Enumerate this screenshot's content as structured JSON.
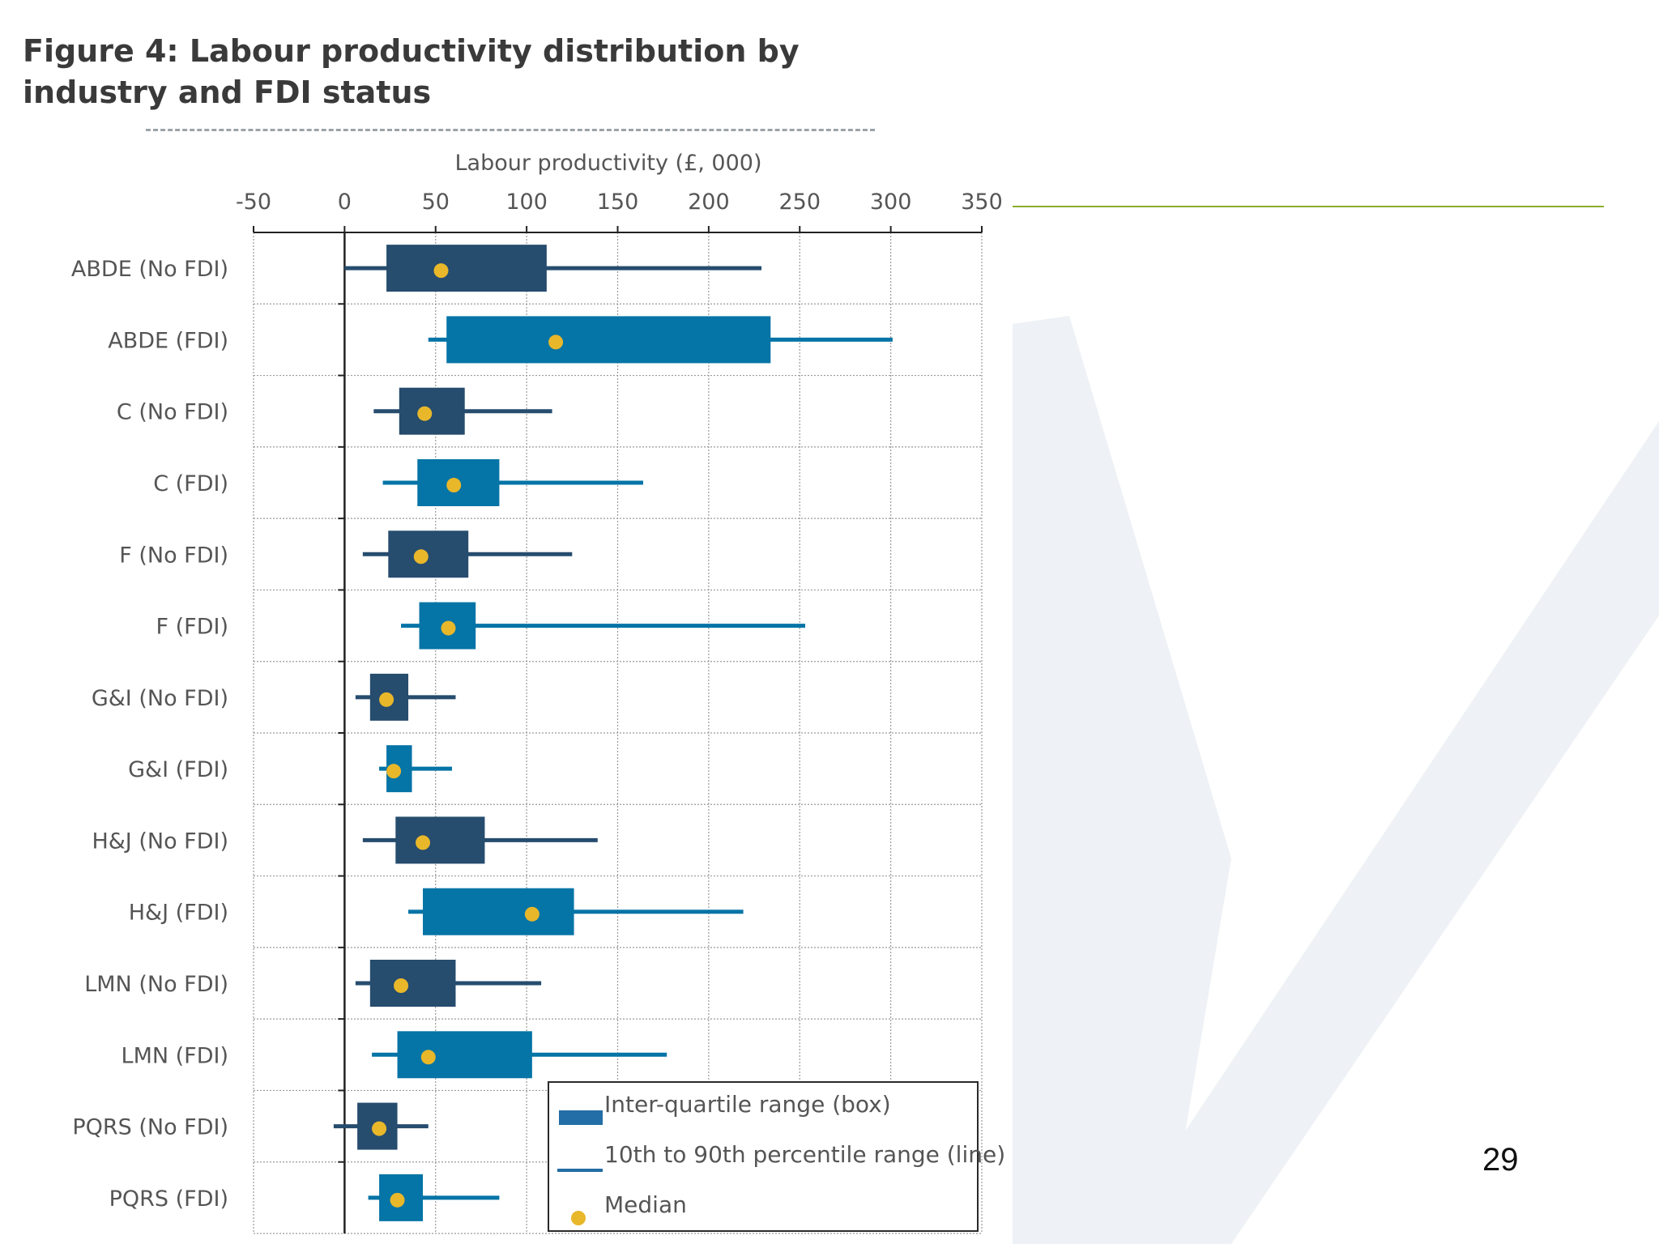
{
  "page": {
    "title": "Figure 4: Labour productivity distribution by industry and FDI status",
    "page_number": "29"
  },
  "colors": {
    "no_fdi": "#264c6e",
    "fdi": "#0574a6",
    "median": "#e8b72a",
    "grid": "#9a9a9a",
    "green_rule": "#8dae2c",
    "watermark": "#eef1f5"
  },
  "chart_data": {
    "type": "boxplot-horizontal",
    "title": "Figure 4: Labour productivity distribution by industry and FDI status",
    "xlabel": "Labour productivity (£, 000)",
    "xlim": [
      -50,
      350
    ],
    "xticks": [
      -50,
      0,
      50,
      100,
      150,
      200,
      250,
      300,
      350
    ],
    "gridlines": true,
    "legend_position": "bottom-right",
    "legend": {
      "box": "Inter-quartile range (box)",
      "line": "10th to 90th percentile range (line)",
      "median": "Median"
    },
    "categories": [
      {
        "label": "ABDE (No FDI)",
        "fdi": false,
        "p10": 0,
        "q1": 23,
        "median": 53,
        "q3": 111,
        "p90": 229
      },
      {
        "label": "ABDE (FDI)",
        "fdi": true,
        "p10": 46,
        "q1": 56,
        "median": 116,
        "q3": 234,
        "p90": 301
      },
      {
        "label": "C (No FDI)",
        "fdi": false,
        "p10": 16,
        "q1": 30,
        "median": 44,
        "q3": 66,
        "p90": 114
      },
      {
        "label": "C (FDI)",
        "fdi": true,
        "p10": 21,
        "q1": 40,
        "median": 60,
        "q3": 85,
        "p90": 164
      },
      {
        "label": "F (No FDI)",
        "fdi": false,
        "p10": 10,
        "q1": 24,
        "median": 42,
        "q3": 68,
        "p90": 125
      },
      {
        "label": "F (FDI)",
        "fdi": true,
        "p10": 31,
        "q1": 41,
        "median": 57,
        "q3": 72,
        "p90": 253
      },
      {
        "label": "G&I (No FDI)",
        "fdi": false,
        "p10": 6,
        "q1": 14,
        "median": 23,
        "q3": 35,
        "p90": 61
      },
      {
        "label": "G&I (FDI)",
        "fdi": true,
        "p10": 19,
        "q1": 23,
        "median": 27,
        "q3": 37,
        "p90": 59
      },
      {
        "label": "H&J (No FDI)",
        "fdi": false,
        "p10": 10,
        "q1": 28,
        "median": 43,
        "q3": 77,
        "p90": 139
      },
      {
        "label": "H&J (FDI)",
        "fdi": true,
        "p10": 35,
        "q1": 43,
        "median": 103,
        "q3": 126,
        "p90": 219
      },
      {
        "label": "LMN (No FDI)",
        "fdi": false,
        "p10": 6,
        "q1": 14,
        "median": 31,
        "q3": 61,
        "p90": 108
      },
      {
        "label": "LMN (FDI)",
        "fdi": true,
        "p10": 15,
        "q1": 29,
        "median": 46,
        "q3": 103,
        "p90": 177
      },
      {
        "label": "PQRS (No FDI)",
        "fdi": false,
        "p10": -6,
        "q1": 7,
        "median": 19,
        "q3": 29,
        "p90": 46
      },
      {
        "label": "PQRS (FDI)",
        "fdi": true,
        "p10": 13,
        "q1": 19,
        "median": 29,
        "q3": 43,
        "p90": 85
      }
    ]
  }
}
